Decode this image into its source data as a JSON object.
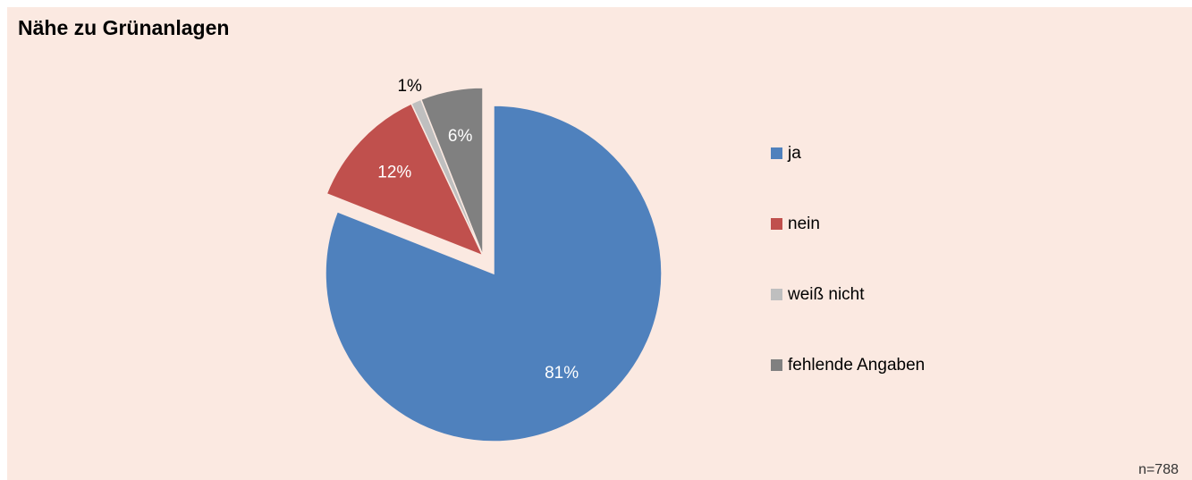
{
  "chart_data": {
    "type": "pie",
    "title": "Nähe zu Grünanlagen",
    "annotation": "n=788",
    "categories": [
      "ja",
      "nein",
      "weiß nicht",
      "fehlende Angaben"
    ],
    "values": [
      81,
      12,
      1,
      6
    ],
    "value_labels": [
      "81%",
      "12%",
      "1%",
      "6%"
    ],
    "colors": [
      "#4f81bd",
      "#c0504d",
      "#bfbfbf",
      "#808080"
    ],
    "exploded": [
      false,
      true,
      true,
      true
    ],
    "legend": "right"
  }
}
